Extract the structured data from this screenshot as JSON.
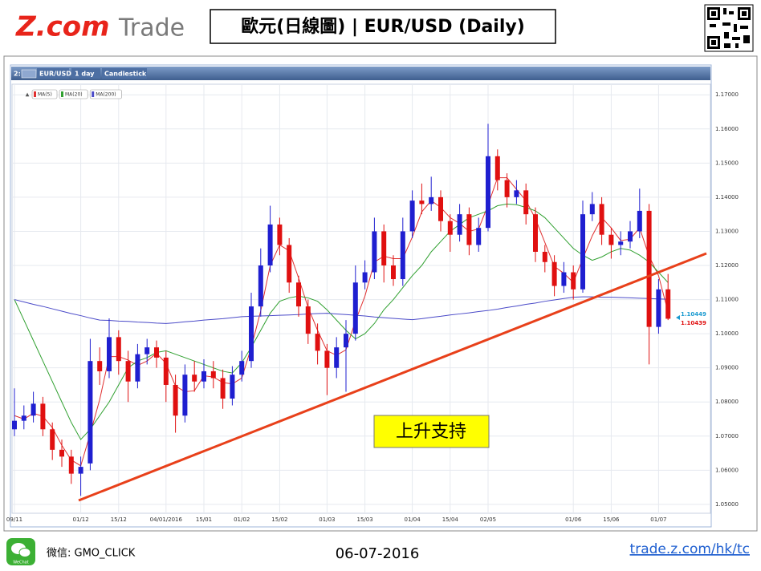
{
  "header": {
    "logo_main": "Z.com",
    "logo_sub": "Trade",
    "title": "歐元(日線圖) | EUR/USD (Daily)"
  },
  "toolbar": {
    "slot": "2:",
    "symbol": "EUR/USD",
    "period": "1 day",
    "style": "Candlestick"
  },
  "chart_data": {
    "type": "candlestick",
    "categories": [
      "09/11",
      null,
      null,
      null,
      null,
      null,
      null,
      "01/12",
      null,
      null,
      null,
      "15/12",
      null,
      null,
      null,
      null,
      "04/01/2016",
      null,
      null,
      null,
      "15/01",
      null,
      null,
      null,
      "01/02",
      null,
      null,
      null,
      "15/02",
      null,
      null,
      null,
      null,
      "01/03",
      null,
      null,
      null,
      "15/03",
      null,
      null,
      null,
      null,
      "01/04",
      null,
      null,
      null,
      "15/04",
      null,
      null,
      null,
      "02/05",
      null,
      null,
      null,
      null,
      null,
      null,
      null,
      null,
      "01/06",
      null,
      null,
      null,
      "15/06",
      null,
      null,
      null,
      null,
      "01/07",
      null
    ],
    "open": [
      1.072,
      1.0745,
      1.076,
      1.0795,
      1.072,
      1.066,
      1.064,
      1.059,
      1.062,
      1.092,
      1.089,
      1.099,
      1.092,
      1.086,
      1.094,
      1.096,
      1.093,
      1.085,
      1.076,
      1.088,
      1.086,
      1.089,
      1.087,
      1.081,
      1.088,
      1.092,
      1.108,
      1.12,
      1.132,
      1.126,
      1.115,
      1.108,
      1.1,
      1.095,
      1.09,
      1.096,
      1.1,
      1.115,
      1.118,
      1.13,
      1.12,
      1.116,
      1.13,
      1.139,
      1.138,
      1.14,
      1.133,
      1.129,
      1.135,
      1.126,
      1.131,
      1.152,
      1.145,
      1.14,
      1.142,
      1.135,
      1.124,
      1.121,
      1.114,
      1.118,
      1.113,
      1.135,
      1.138,
      1.129,
      1.126,
      1.127,
      1.13,
      1.136,
      1.102,
      1.113
    ],
    "high": [
      1.084,
      1.079,
      1.083,
      1.0815,
      1.074,
      1.069,
      1.066,
      1.064,
      1.0985,
      1.096,
      1.1045,
      1.101,
      1.095,
      1.097,
      1.0985,
      1.098,
      1.095,
      1.088,
      1.091,
      1.092,
      1.0925,
      1.092,
      1.0895,
      1.0905,
      1.095,
      1.112,
      1.125,
      1.1375,
      1.134,
      1.128,
      1.117,
      1.11,
      1.103,
      1.097,
      1.099,
      1.104,
      1.12,
      1.1215,
      1.134,
      1.132,
      1.123,
      1.134,
      1.142,
      1.144,
      1.146,
      1.142,
      1.135,
      1.138,
      1.137,
      1.134,
      1.1615,
      1.154,
      1.147,
      1.145,
      1.144,
      1.137,
      1.126,
      1.123,
      1.121,
      1.12,
      1.139,
      1.1415,
      1.14,
      1.131,
      1.13,
      1.133,
      1.1425,
      1.138,
      1.116,
      1.1175
    ],
    "low": [
      1.07,
      1.072,
      1.074,
      1.07,
      1.063,
      1.061,
      1.056,
      1.0525,
      1.06,
      1.085,
      1.087,
      1.088,
      1.08,
      1.084,
      1.091,
      1.09,
      1.08,
      1.071,
      1.074,
      1.083,
      1.084,
      1.084,
      1.078,
      1.079,
      1.086,
      1.09,
      1.105,
      1.118,
      1.123,
      1.112,
      1.105,
      1.097,
      1.091,
      1.082,
      1.087,
      1.083,
      1.098,
      1.113,
      1.116,
      1.115,
      1.114,
      1.114,
      1.128,
      1.135,
      1.136,
      1.13,
      1.124,
      1.127,
      1.123,
      1.124,
      1.13,
      1.142,
      1.137,
      1.138,
      1.132,
      1.121,
      1.118,
      1.111,
      1.112,
      1.11,
      1.112,
      1.133,
      1.126,
      1.122,
      1.123,
      1.125,
      1.128,
      1.091,
      1.1,
      1.104
    ],
    "close": [
      1.0745,
      1.076,
      1.0795,
      1.072,
      1.066,
      1.064,
      1.059,
      1.061,
      1.092,
      1.089,
      1.099,
      1.092,
      1.086,
      1.094,
      1.096,
      1.093,
      1.085,
      1.076,
      1.088,
      1.086,
      1.089,
      1.087,
      1.081,
      1.088,
      1.092,
      1.108,
      1.12,
      1.132,
      1.126,
      1.115,
      1.108,
      1.1,
      1.095,
      1.09,
      1.096,
      1.1,
      1.115,
      1.118,
      1.13,
      1.12,
      1.116,
      1.13,
      1.139,
      1.138,
      1.14,
      1.133,
      1.129,
      1.135,
      1.126,
      1.131,
      1.152,
      1.145,
      1.14,
      1.142,
      1.135,
      1.124,
      1.121,
      1.114,
      1.118,
      1.113,
      1.135,
      1.138,
      1.129,
      1.126,
      1.127,
      1.13,
      1.136,
      1.102,
      1.113,
      1.10439
    ],
    "up_color": "#1f1fd0",
    "down_color": "#e01010",
    "series": [
      {
        "name": "MA(5)",
        "color": "#e03030",
        "values": [
          1.076,
          1.075,
          1.0767,
          1.0758,
          1.0725,
          1.0673,
          1.063,
          1.0613,
          1.0707,
          1.0807,
          1.0933,
          1.0933,
          1.0923,
          1.0907,
          1.092,
          1.0943,
          1.0913,
          1.0847,
          1.083,
          1.0833,
          1.0877,
          1.0873,
          1.0857,
          1.0853,
          1.087,
          1.096,
          1.1067,
          1.12,
          1.126,
          1.1243,
          1.1163,
          1.1077,
          1.101,
          1.095,
          1.0937,
          1.0953,
          1.1037,
          1.111,
          1.121,
          1.1227,
          1.122,
          1.122,
          1.1283,
          1.1357,
          1.139,
          1.137,
          1.134,
          1.1323,
          1.13,
          1.1307,
          1.1377,
          1.1457,
          1.1457,
          1.1423,
          1.139,
          1.1337,
          1.1267,
          1.1197,
          1.1177,
          1.115,
          1.122,
          1.1287,
          1.134,
          1.131,
          1.1273,
          1.1277,
          1.131,
          1.1227,
          1.117,
          1.1064
        ]
      },
      {
        "name": "MA(20)",
        "color": "#30a030",
        "values": [
          1.11,
          1.104,
          1.098,
          1.092,
          1.086,
          1.08,
          1.074,
          1.069,
          1.072,
          1.076,
          1.08,
          1.085,
          1.09,
          1.092,
          1.093,
          1.0945,
          1.095,
          1.094,
          1.093,
          1.092,
          1.091,
          1.09,
          1.089,
          1.0885,
          1.0915,
          1.096,
          1.101,
          1.106,
          1.1095,
          1.1105,
          1.111,
          1.1105,
          1.1095,
          1.107,
          1.104,
          1.101,
          1.0985,
          1.1,
          1.103,
          1.107,
          1.11,
          1.1135,
          1.117,
          1.12,
          1.124,
          1.127,
          1.13,
          1.132,
          1.134,
          1.135,
          1.136,
          1.1375,
          1.138,
          1.1378,
          1.137,
          1.136,
          1.134,
          1.131,
          1.128,
          1.125,
          1.123,
          1.1215,
          1.1225,
          1.124,
          1.125,
          1.1245,
          1.123,
          1.121,
          1.118,
          1.115
        ]
      },
      {
        "name": "MA(200)",
        "color": "#4a4ac8",
        "values": [
          1.11,
          1.1093,
          1.1086,
          1.108,
          1.1073,
          1.1066,
          1.1059,
          1.1053,
          1.1046,
          1.104,
          1.1039,
          1.1037,
          1.1036,
          1.1034,
          1.1033,
          1.1031,
          1.103,
          1.1032,
          1.1035,
          1.1037,
          1.104,
          1.1042,
          1.1044,
          1.1047,
          1.105,
          1.1051,
          1.1052,
          1.1053,
          1.1054,
          1.1055,
          1.1056,
          1.1058,
          1.1059,
          1.106,
          1.1058,
          1.1056,
          1.1054,
          1.1052,
          1.1049,
          1.1047,
          1.1045,
          1.1043,
          1.1041,
          1.1044,
          1.1048,
          1.1051,
          1.1055,
          1.1058,
          1.1061,
          1.1065,
          1.1068,
          1.1072,
          1.1077,
          1.1081,
          1.1086,
          1.109,
          1.1095,
          1.1099,
          1.1103,
          1.1107,
          1.1108,
          1.1108,
          1.1107,
          1.1107,
          1.1106,
          1.1105,
          1.1104,
          1.1103,
          1.1102,
          1.1101
        ]
      }
    ],
    "ylim": [
      1.0474,
      1.1731
    ],
    "yticks": [
      {
        "value": 1.05,
        "label": "1.05000"
      },
      {
        "value": 1.06,
        "label": "1.06000"
      },
      {
        "value": 1.07,
        "label": "1.07000"
      },
      {
        "value": 1.08,
        "label": "1.08000"
      },
      {
        "value": 1.09,
        "label": "1.09000"
      },
      {
        "value": 1.1,
        "label": "1.10000"
      },
      {
        "value": 1.11,
        "label": "1.11000"
      },
      {
        "value": 1.12,
        "label": "1.12000"
      },
      {
        "value": 1.13,
        "label": "1.13000"
      },
      {
        "value": 1.14,
        "label": "1.14000"
      },
      {
        "value": 1.15,
        "label": "1.15000"
      },
      {
        "value": 1.16,
        "label": "1.16000"
      },
      {
        "value": 1.17,
        "label": "1.17000"
      }
    ],
    "grid": true,
    "price_tags": [
      {
        "text": "1.10449",
        "color": "#1a9ad0"
      },
      {
        "text": "1.10439",
        "color": "#e01010"
      }
    ],
    "annotation": "上升支持"
  },
  "footer": {
    "wechat_icon": "WeChat",
    "wechat": "微信: GMO_CLICK",
    "date": "06-07-2016",
    "link": "trade.z.com/hk/tc"
  }
}
